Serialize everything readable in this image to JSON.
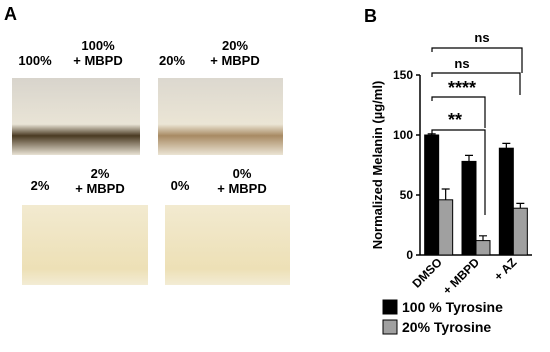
{
  "panel_a": {
    "label": "A",
    "tubes": [
      {
        "lines": [
          "100%"
        ]
      },
      {
        "lines": [
          "100%",
          "+ MBPD"
        ]
      },
      {
        "lines": [
          "20%"
        ]
      },
      {
        "lines": [
          "20%",
          "+ MBPD"
        ]
      },
      {
        "lines": [
          "2%"
        ]
      },
      {
        "lines": [
          "2%",
          "+ MBPD"
        ]
      },
      {
        "lines": [
          "0%"
        ]
      },
      {
        "lines": [
          "0%",
          "+ MBPD"
        ]
      }
    ]
  },
  "chart_data": {
    "type": "bar",
    "panel_label": "B",
    "y_label": "Normalized Melanin (µg/ml)",
    "categories": [
      "DMSO",
      "+ MBPD",
      "+ AZ"
    ],
    "series": [
      {
        "name": "100 % Tyrosine",
        "color": "#000000",
        "values": [
          100,
          78,
          89
        ],
        "errors": [
          1,
          5,
          4
        ]
      },
      {
        "name": "20% Tyrosine",
        "color": "#a0a0a0",
        "values": [
          46,
          12,
          39
        ],
        "errors": [
          9,
          4,
          4
        ]
      }
    ],
    "annotations": [
      "**",
      "****",
      "ns",
      "ns"
    ],
    "ylim": [
      0,
      150
    ],
    "yticks": [
      0,
      50,
      100,
      150
    ],
    "grid": false,
    "legend": "bottom"
  }
}
